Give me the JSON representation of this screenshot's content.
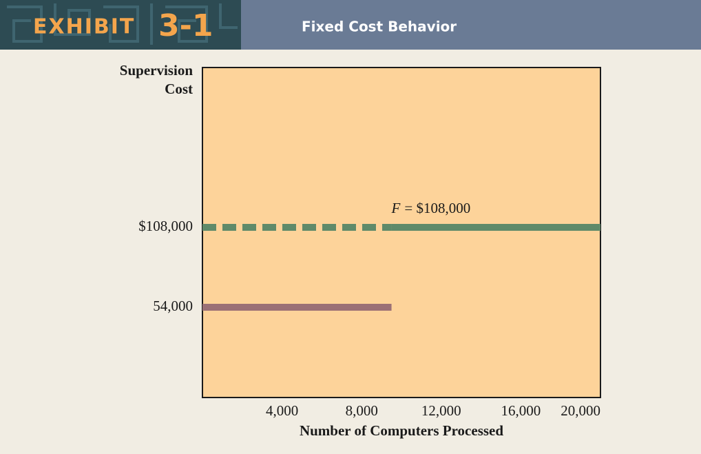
{
  "header": {
    "label": "EXHIBIT",
    "number": "3-1",
    "title": "Fixed Cost Behavior"
  },
  "chart_data": {
    "type": "line",
    "ylabel": [
      "Supervision",
      "Cost"
    ],
    "xlabel": "Number of Computers Processed",
    "xlim": [
      0,
      20000
    ],
    "xticks": [
      {
        "value": 4000,
        "label": "4,000"
      },
      {
        "value": 8000,
        "label": "8,000"
      },
      {
        "value": 12000,
        "label": "12,000"
      },
      {
        "value": 16000,
        "label": "16,000"
      },
      {
        "value": 20000,
        "label": "20,000"
      }
    ],
    "ylim": [
      0,
      216000
    ],
    "yticks": [
      {
        "value": 54000,
        "label": "54,000"
      },
      {
        "value": 108000,
        "label": "$108,000"
      }
    ],
    "series": [
      {
        "color": "#5f8a6a",
        "dashed": true,
        "x": [
          0,
          9500
        ],
        "values": [
          108000,
          108000
        ]
      },
      {
        "color": "#5f8a6a",
        "dashed": false,
        "x": [
          9500,
          20000
        ],
        "values": [
          108000,
          108000
        ]
      },
      {
        "color": "#9b7076",
        "dashed": false,
        "x": [
          0,
          9500
        ],
        "values": [
          54000,
          54000
        ]
      }
    ],
    "annotation": {
      "variable": "F",
      "text": "= $108,000",
      "x": 9500,
      "y": 108000
    }
  }
}
